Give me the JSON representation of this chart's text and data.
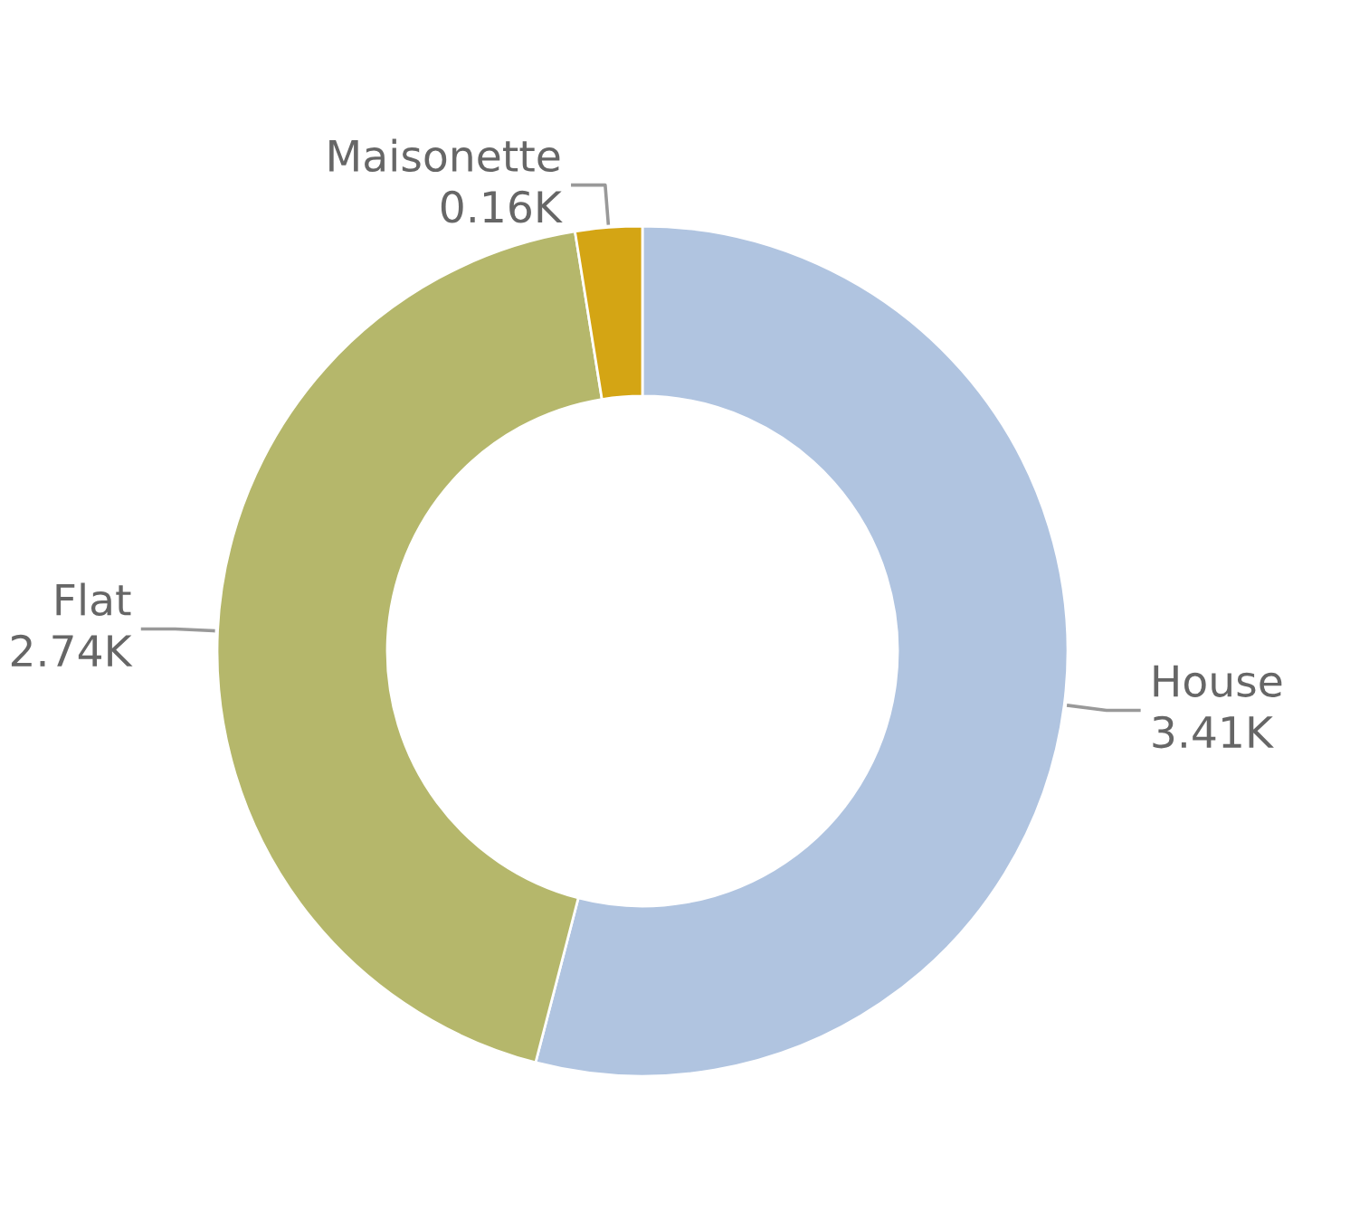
{
  "chart_data": {
    "type": "donut",
    "categories": [
      "House",
      "Flat",
      "Maisonette"
    ],
    "values": [
      3.41,
      2.74,
      0.16
    ],
    "value_labels": [
      "3.41K",
      "2.74K",
      "0.16K"
    ],
    "colors": [
      "#b0c4e0",
      "#b5b76b",
      "#d4a514"
    ]
  }
}
